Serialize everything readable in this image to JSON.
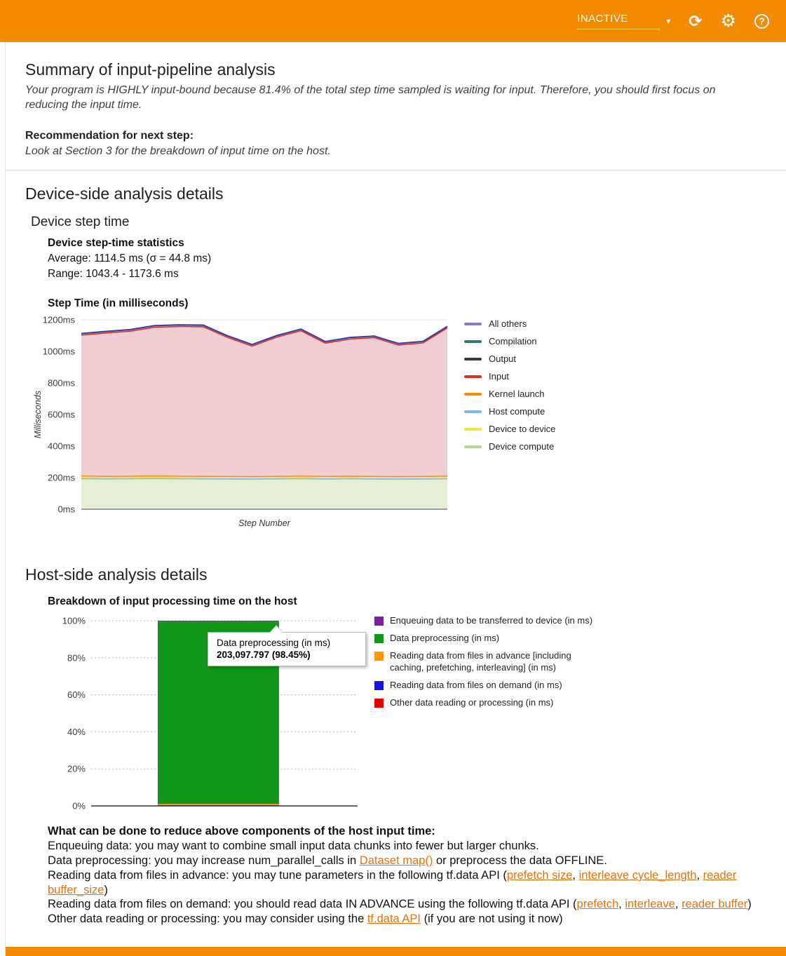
{
  "colors": {
    "brand_orange": "#f28b00",
    "link_orange": "#e8710a",
    "preprocessing_green": "#109618"
  },
  "header": {
    "status_label": "INACTIVE"
  },
  "summary": {
    "title": "Summary of input-pipeline analysis",
    "body": "Your program is HIGHLY input-bound because 81.4% of the total step time sampled is waiting for input. Therefore, you should first focus on reducing the input time.",
    "recommendation_label": "Recommendation for next step:",
    "recommendation_body": "Look at Section 3 for the breakdown of input time on the host."
  },
  "device": {
    "section_title": "Device-side analysis details",
    "subtitle": "Device step time",
    "stats_title": "Device step-time statistics",
    "average_line": "Average: 1114.5 ms (σ = 44.8 ms)",
    "range_line": "Range: 1043.4 - 1173.6 ms"
  },
  "host": {
    "section_title": "Host-side analysis details"
  },
  "advice": {
    "heading": "What can be done to reduce above components of the host input time:",
    "lines": [
      {
        "segments": [
          {
            "t": "Enqueuing data: you may want to combine small input data chunks into fewer but larger chunks."
          }
        ]
      },
      {
        "segments": [
          {
            "t": "Data preprocessing: you may increase num_parallel_calls in "
          },
          {
            "t": "Dataset map()",
            "link": true
          },
          {
            "t": " or preprocess the data OFFLINE."
          }
        ]
      },
      {
        "segments": [
          {
            "t": "Reading data from files in advance: you may tune parameters in the following tf.data API ("
          },
          {
            "t": "prefetch size",
            "link": true
          },
          {
            "t": ", "
          },
          {
            "t": "interleave cycle_length",
            "link": true
          },
          {
            "t": ", "
          },
          {
            "t": "reader buffer_size",
            "link": true
          },
          {
            "t": ")"
          }
        ]
      },
      {
        "segments": [
          {
            "t": "Reading data from files on demand: you should read data IN ADVANCE using the following tf.data API ("
          },
          {
            "t": "prefetch",
            "link": true
          },
          {
            "t": ", "
          },
          {
            "t": "interleave",
            "link": true
          },
          {
            "t": ", "
          },
          {
            "t": "reader buffer",
            "link": true
          },
          {
            "t": ")"
          }
        ]
      },
      {
        "segments": [
          {
            "t": "Other data reading or processing: you may consider using the "
          },
          {
            "t": "tf.data API",
            "link": true
          },
          {
            "t": " (if you are not using it now)"
          }
        ]
      }
    ]
  },
  "chart_data": [
    {
      "type": "area",
      "stacked": true,
      "title": "Step Time (in milliseconds)",
      "xlabel": "Step Number",
      "ylabel": "Milliseconds",
      "ylim": [
        0,
        1200
      ],
      "y_ticks": [
        "0ms",
        "200ms",
        "400ms",
        "600ms",
        "800ms",
        "1000ms",
        "1200ms"
      ],
      "grid": true,
      "legend_position": "right",
      "total_step_time_ms": [
        1113,
        1126,
        1138,
        1163,
        1168,
        1166,
        1098,
        1043,
        1100,
        1141,
        1062,
        1088,
        1097,
        1050,
        1063,
        1158
      ],
      "series": [
        {
          "name": "Device compute",
          "color": "#9ccc65",
          "fill": "#e5efd6",
          "line": true,
          "lw": 1.5,
          "values": [
            193,
            191,
            192,
            194,
            192,
            191,
            190,
            189,
            191,
            193,
            190,
            192,
            190,
            189,
            190,
            192
          ]
        },
        {
          "name": "Device to device",
          "color": "#f3e24a",
          "fill": "none",
          "line": true,
          "lw": 1,
          "values": [
            2,
            2,
            2,
            2,
            2,
            2,
            2,
            2,
            2,
            2,
            2,
            2,
            2,
            2,
            2,
            2
          ]
        },
        {
          "name": "Host compute",
          "color": "#78b6f4",
          "fill": "none",
          "line": true,
          "lw": 1,
          "values": [
            2,
            2,
            2,
            2,
            2,
            2,
            2,
            2,
            2,
            2,
            2,
            2,
            2,
            2,
            2,
            2
          ]
        },
        {
          "name": "Kernel launch",
          "color": "#fb8c00",
          "fill": "#fbe3c0",
          "line": true,
          "lw": 1.5,
          "values": [
            13,
            13,
            13,
            13,
            13,
            13,
            13,
            13,
            13,
            13,
            13,
            13,
            13,
            13,
            13,
            13
          ]
        },
        {
          "name": "Input",
          "color": "#d93025",
          "fill": "#f0cdd0",
          "line": true,
          "lw": 1.5,
          "values": [
            893,
            908,
            919,
            942,
            949,
            948,
            881,
            827,
            882,
            921,
            845,
            869,
            880,
            834,
            846,
            939
          ]
        },
        {
          "name": "Output",
          "color": "#3c3c3c",
          "fill": "none",
          "line": false,
          "lw": 1,
          "values": [
            0,
            0,
            0,
            0,
            0,
            0,
            0,
            0,
            0,
            0,
            0,
            0,
            0,
            0,
            0,
            0
          ]
        },
        {
          "name": "Compilation",
          "color": "#2e7d6e",
          "fill": "none",
          "line": false,
          "lw": 1,
          "values": [
            0,
            0,
            0,
            0,
            0,
            0,
            0,
            0,
            0,
            0,
            0,
            0,
            0,
            0,
            0,
            0
          ]
        },
        {
          "name": "All others",
          "color": "#3f3f9e",
          "fill": "#cfc3ea",
          "line": true,
          "lw": 2.2,
          "values": [
            10,
            10,
            10,
            10,
            10,
            10,
            10,
            10,
            10,
            10,
            10,
            10,
            10,
            10,
            10,
            10
          ]
        }
      ],
      "legend": [
        {
          "label": "All others",
          "color": "#8e76cc"
        },
        {
          "label": "Compilation",
          "color": "#2e7d6e"
        },
        {
          "label": "Output",
          "color": "#3c3c3c"
        },
        {
          "label": "Input",
          "color": "#d93025"
        },
        {
          "label": "Kernel launch",
          "color": "#fb8c00"
        },
        {
          "label": "Host compute",
          "color": "#78b6f4"
        },
        {
          "label": "Device to device",
          "color": "#f3e24a"
        },
        {
          "label": "Device compute",
          "color": "#b5d98a"
        }
      ]
    },
    {
      "type": "bar",
      "stacked": true,
      "title": "Breakdown of input processing time on the host",
      "ylim": [
        0,
        100
      ],
      "y_ticks": [
        "0%",
        "20%",
        "40%",
        "60%",
        "80%",
        "100%"
      ],
      "categories": [
        ""
      ],
      "series": [
        {
          "name": "Other data reading or processing (in ms)",
          "color": "#e60000",
          "values": [
            0.2
          ]
        },
        {
          "name": "Reading data from files on demand (in ms)",
          "color": "#1a12e0",
          "values": [
            0.15
          ]
        },
        {
          "name": "Reading data from files in advance [including caching, prefetching, interleaving] (in ms)",
          "color": "#ff9900",
          "values": [
            0.75
          ]
        },
        {
          "name": "Data preprocessing (in ms)",
          "color": "#109618",
          "values": [
            98.45
          ]
        },
        {
          "name": "Enqueuing data to be transferred to device (in ms)",
          "color": "#7b1fa2",
          "values": [
            0.45
          ]
        }
      ],
      "legend": [
        {
          "label": "Enqueuing data to be transferred to device (in ms)",
          "color": "#7b1fa2"
        },
        {
          "label": "Data preprocessing (in ms)",
          "color": "#109618"
        },
        {
          "label": "Reading data from files in advance [including caching, prefetching, interleaving] (in ms)",
          "color": "#ff9900"
        },
        {
          "label": "Reading data from files on demand (in ms)",
          "color": "#1a12e0"
        },
        {
          "label": "Other data reading or processing (in ms)",
          "color": "#e60000"
        }
      ],
      "tooltip": {
        "title": "Data preprocessing (in ms)",
        "value": "203,097.797 (98.45%)"
      }
    }
  ]
}
